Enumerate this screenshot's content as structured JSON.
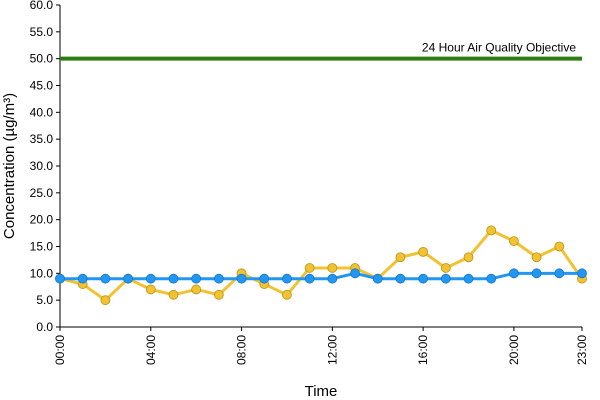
{
  "chart_data": {
    "type": "line",
    "title": "",
    "xlabel": "Time",
    "ylabel": "Concentration (µg/m³)",
    "ylim": [
      0,
      60
    ],
    "y_ticks": [
      "0.0",
      "5.0",
      "10.0",
      "15.0",
      "20.0",
      "25.0",
      "30.0",
      "35.0",
      "40.0",
      "45.0",
      "50.0",
      "55.0",
      "60.0"
    ],
    "x_ticks": [
      "00:00",
      "04:00",
      "08:00",
      "12:00",
      "16:00",
      "20:00",
      "23:00"
    ],
    "x_tick_hours": [
      0,
      4,
      8,
      12,
      16,
      20,
      23
    ],
    "x": [
      0,
      1,
      2,
      3,
      4,
      5,
      6,
      7,
      8,
      9,
      10,
      11,
      12,
      13,
      14,
      15,
      16,
      17,
      18,
      19,
      20,
      21,
      22,
      23
    ],
    "grid": false,
    "series": [
      {
        "color": "#f1c232",
        "marker": "circle",
        "values": [
          9,
          8,
          5,
          9,
          7,
          6,
          7,
          6,
          10,
          8,
          6,
          11,
          11,
          11,
          9,
          13,
          14,
          11,
          13,
          18,
          16,
          13,
          15,
          9
        ]
      },
      {
        "color": "#2196f3",
        "marker": "circle",
        "values": [
          9,
          9,
          9,
          9,
          9,
          9,
          9,
          9,
          9,
          9,
          9,
          9,
          9,
          10,
          9,
          9,
          9,
          9,
          9,
          9,
          10,
          10,
          10,
          10
        ]
      }
    ],
    "reference_line": {
      "label": "24 Hour Air Quality Objective",
      "value": 50,
      "color": "#2e7d12"
    }
  }
}
